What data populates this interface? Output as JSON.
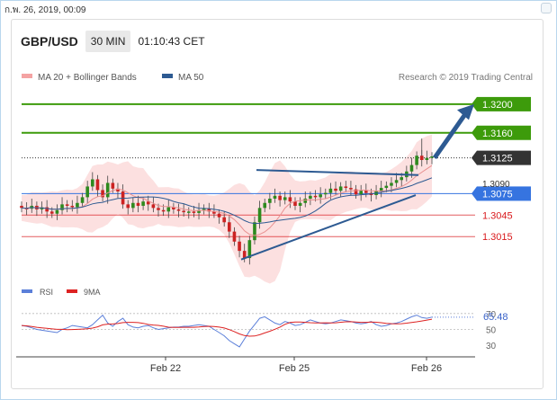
{
  "timestamp": "ก.พ. 26, 2019, 00:09",
  "header": {
    "symbol": "GBP/USD",
    "interval": "30 MIN",
    "time": "01:10:43 CET"
  },
  "legend": {
    "ma20": "MA 20 + Bollinger Bands",
    "ma50": "MA 50",
    "source": "Research © 2019 Trading Central"
  },
  "colors": {
    "resistance": "#3d9b0b",
    "support": "#d9191c",
    "current": "#333333",
    "pivot": "#3674e0",
    "ma50": "#2d5a92",
    "bollinger": "#f9c7c7",
    "candle_up": "#2d8a1e",
    "candle_down": "#cc2222",
    "rsi": "#5b7fd9",
    "rsi_ma": "#dd2222"
  },
  "chart_data": [
    {
      "type": "candlestick",
      "title": "",
      "ylim": [
        1.2965,
        1.3225
      ],
      "x_ticks": [
        "Feb 22",
        "Feb 25",
        "Feb 26"
      ],
      "price_levels": [
        {
          "value": 1.32,
          "label": "1.3200",
          "kind": "resistance"
        },
        {
          "value": 1.316,
          "label": "1.3160",
          "kind": "resistance"
        },
        {
          "value": 1.3125,
          "label": "1.3125",
          "kind": "current"
        },
        {
          "value": 1.3075,
          "label": "1.3075",
          "kind": "pivot"
        },
        {
          "value": 1.3045,
          "label": "1.3045",
          "kind": "support"
        },
        {
          "value": 1.3015,
          "label": "1.3015",
          "kind": "support"
        }
      ],
      "hidden_label": "1.3090",
      "series": [
        {
          "name": "MA 20 + Bollinger Bands"
        },
        {
          "name": "MA 50"
        }
      ],
      "close_path": [
        1.3055,
        1.3054,
        1.3058,
        1.3053,
        1.3056,
        1.305,
        1.3047,
        1.3052,
        1.306,
        1.3058,
        1.3056,
        1.3062,
        1.307,
        1.3085,
        1.3095,
        1.308,
        1.307,
        1.309,
        1.3082,
        1.3078,
        1.306,
        1.3055,
        1.3062,
        1.3058,
        1.3064,
        1.306,
        1.3055,
        1.3052,
        1.305,
        1.3056,
        1.3053,
        1.3051,
        1.3049,
        1.305,
        1.3048,
        1.3052,
        1.3054,
        1.305,
        1.3047,
        1.3042,
        1.3035,
        1.3022,
        1.3008,
        1.2995,
        1.2985,
        1.301,
        1.3035,
        1.3055,
        1.3062,
        1.3068,
        1.3072,
        1.3066,
        1.307,
        1.3064,
        1.3058,
        1.3062,
        1.3068,
        1.3072,
        1.307,
        1.3074,
        1.3076,
        1.3082,
        1.3079,
        1.3085,
        1.3083,
        1.3081,
        1.3074,
        1.3079,
        1.3076,
        1.3073,
        1.3079,
        1.3083,
        1.3086,
        1.309,
        1.3094,
        1.3098,
        1.3106,
        1.3115,
        1.3128,
        1.3122,
        1.3125,
        1.3127
      ]
    },
    {
      "type": "line",
      "title": "",
      "ylim": [
        20,
        80
      ],
      "y_ticks": [
        70,
        50,
        30
      ],
      "series": [
        {
          "name": "RSI",
          "last_label": "65.48"
        },
        {
          "name": "9MA"
        }
      ],
      "rsi_path": [
        55,
        54,
        52,
        50,
        49,
        48,
        47,
        46,
        50,
        52,
        55,
        54,
        53,
        52,
        56,
        62,
        68,
        58,
        54,
        60,
        64,
        56,
        53,
        52,
        54,
        55,
        52,
        50,
        51,
        52,
        53,
        53,
        54,
        54,
        55,
        56,
        55,
        54,
        50,
        46,
        42,
        36,
        32,
        28,
        38,
        48,
        56,
        64,
        66,
        62,
        58,
        56,
        60,
        58,
        55,
        56,
        59,
        62,
        60,
        58,
        57,
        58,
        60,
        62,
        61,
        60,
        58,
        57,
        58,
        60,
        56,
        54,
        55,
        57,
        58,
        60,
        63,
        66,
        68,
        65,
        64,
        65.48
      ]
    }
  ]
}
